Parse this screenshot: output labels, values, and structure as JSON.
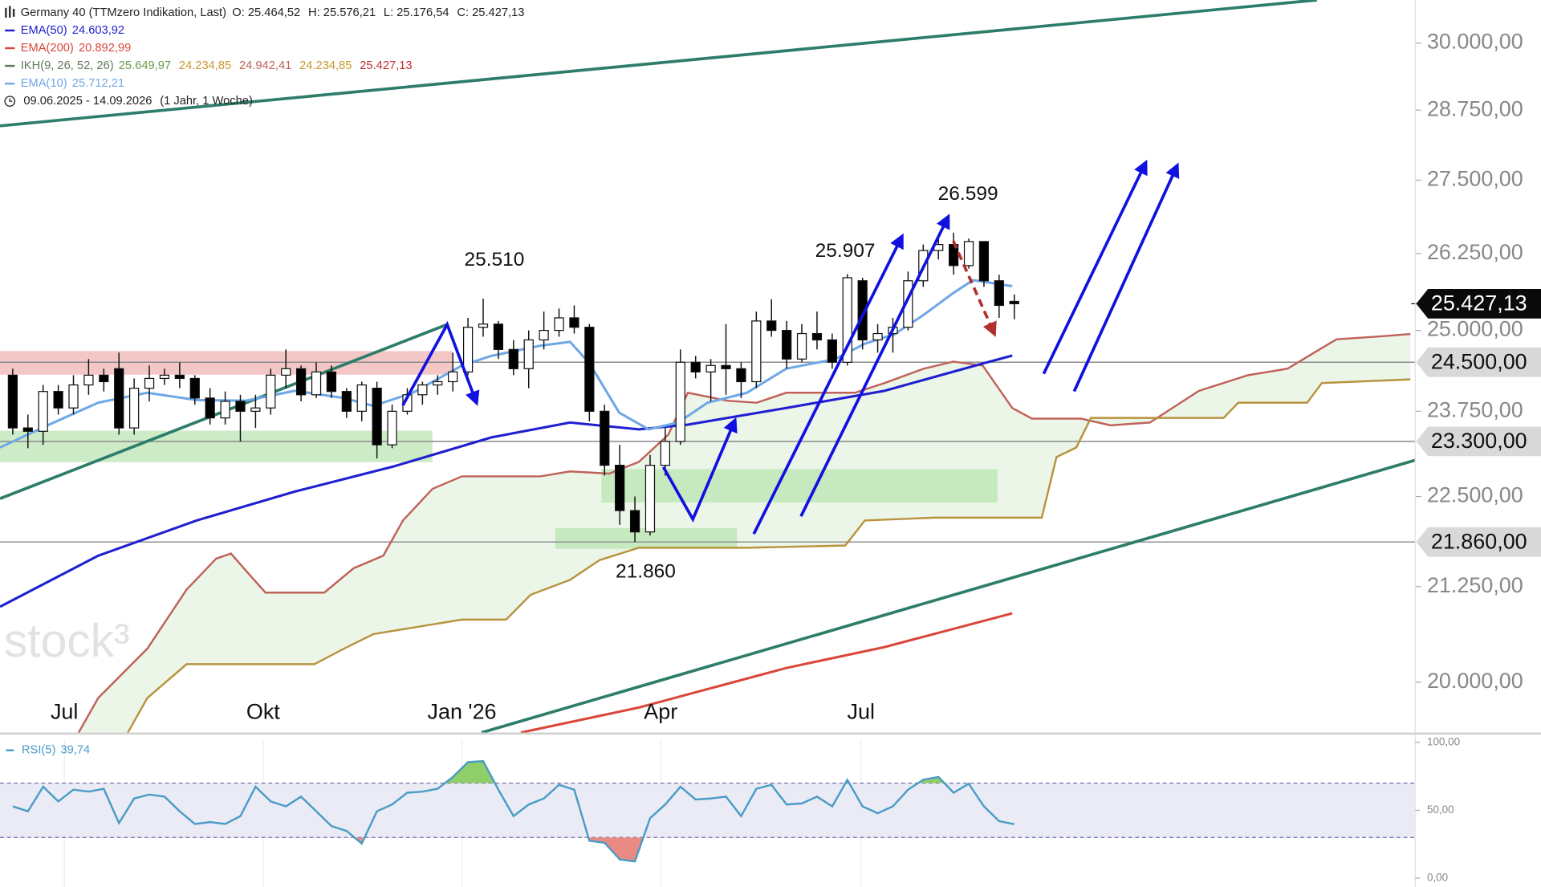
{
  "chart_data": {
    "type": "candlestick",
    "title": "Germany 40 (TTMzero Indikation, Last)",
    "ohlc_header": [
      "O: 25.464,52",
      "H: 25.576,21",
      "L: 25.176,54",
      "C: 25.427,13"
    ],
    "period": "09.06.2025 - 14.09.2026",
    "period_note": "(1 Jahr, 1 Woche)",
    "watermark": "stock³",
    "log_scale": true,
    "xlim": [
      -0.84,
      92.42
    ],
    "xticks": [
      {
        "value": 3.4,
        "label": "Jul"
      },
      {
        "value": 16.5,
        "label": "Okt"
      },
      {
        "value": 29.6,
        "label": "Jan '26"
      },
      {
        "value": 42.7,
        "label": "Apr"
      },
      {
        "value": 55.9,
        "label": "Jul"
      }
    ],
    "ylim": [
      19370,
      30830
    ],
    "yticks": [
      {
        "value": 30000,
        "label": "30.000,00"
      },
      {
        "value": 28750,
        "label": "28.750,00"
      },
      {
        "value": 27500,
        "label": "27.500,00"
      },
      {
        "value": 26250,
        "label": "26.250,00"
      },
      {
        "value": 25000,
        "label": "25.000,00"
      },
      {
        "value": 23750,
        "label": "23.750,00"
      },
      {
        "value": 22500,
        "label": "22.500,00"
      },
      {
        "value": 21250,
        "label": "21.250,00"
      },
      {
        "value": 20000,
        "label": "20.000,00"
      }
    ],
    "open": [
      24300,
      23500,
      23450,
      24050,
      23800,
      24150,
      24300,
      24400,
      23500,
      24100,
      24250,
      24300,
      24250,
      23950,
      23650,
      23900,
      23750,
      23800,
      24300,
      24400,
      24000,
      24350,
      24050,
      23750,
      24100,
      23250,
      23750,
      24000,
      24150,
      24200,
      24350,
      25050,
      25100,
      24700,
      24400,
      24850,
      25000,
      25200,
      25050,
      23750,
      22950,
      22300,
      22000,
      22950,
      23300,
      24500,
      24350,
      24450,
      24400,
      24200,
      25150,
      25000,
      24550,
      24950,
      24850,
      24500,
      25800,
      24850,
      24950,
      25050,
      25800,
      26300,
      26400,
      26050,
      26450,
      25800,
      25464.52
    ],
    "high": [
      24400,
      23700,
      24150,
      24150,
      24300,
      24550,
      24400,
      24650,
      24250,
      24450,
      24400,
      24500,
      24300,
      24100,
      24050,
      24000,
      24000,
      24400,
      24700,
      24450,
      24500,
      24450,
      24100,
      24200,
      24200,
      23850,
      24100,
      24200,
      24300,
      24650,
      25200,
      25510,
      25150,
      24850,
      25000,
      25300,
      25350,
      25400,
      25100,
      23850,
      23250,
      22500,
      23100,
      23500,
      24700,
      24600,
      24550,
      25100,
      24500,
      25300,
      25500,
      25150,
      25100,
      25300,
      24950,
      25907,
      25850,
      25100,
      25200,
      25950,
      26400,
      26500,
      26599,
      26500,
      26450,
      25900,
      25576.21
    ],
    "low": [
      23400,
      23200,
      23250,
      23700,
      23700,
      24000,
      24050,
      23400,
      23400,
      23900,
      24150,
      24100,
      23850,
      23550,
      23550,
      23300,
      23500,
      23700,
      24100,
      23900,
      23950,
      23950,
      23650,
      23600,
      23050,
      23200,
      23700,
      23850,
      24000,
      24050,
      24300,
      24900,
      24550,
      24300,
      24100,
      24700,
      24900,
      24950,
      23600,
      22800,
      22100,
      21860,
      21950,
      22800,
      23250,
      24250,
      23900,
      24000,
      23950,
      24100,
      24900,
      24400,
      24500,
      24700,
      24400,
      24450,
      24700,
      24650,
      24650,
      25000,
      25700,
      26150,
      25900,
      26000,
      25700,
      25200,
      25176.54
    ],
    "close": [
      23500,
      23450,
      24050,
      23800,
      24150,
      24300,
      24200,
      23500,
      24100,
      24250,
      24300,
      24250,
      23950,
      23650,
      23900,
      23750,
      23800,
      24300,
      24400,
      24000,
      24350,
      24050,
      23750,
      24150,
      23250,
      23750,
      24000,
      24150,
      24200,
      24350,
      25050,
      25100,
      24700,
      24400,
      24850,
      25000,
      25200,
      25050,
      23750,
      22950,
      22300,
      22000,
      22950,
      23300,
      24500,
      24350,
      24450,
      24400,
      24200,
      25150,
      25000,
      24550,
      24950,
      24850,
      24500,
      25850,
      24850,
      24950,
      25050,
      25800,
      26300,
      26400,
      26050,
      26450,
      25800,
      25400,
      25427.13
    ],
    "overlays": [
      {
        "name": "EMA(50)",
        "label_value": "24.603,92",
        "color": "#1f1fd0",
        "x": [
          -0.84,
          5.63,
          12.11,
          18.59,
          25.06,
          31.54,
          36.72,
          41.26,
          44.49,
          50.97,
          57.45,
          63.92,
          65.87
        ],
        "values": [
          20980,
          21670,
          22160,
          22570,
          22930,
          23360,
          23580,
          23480,
          23550,
          23800,
          24060,
          24480,
          24603.92
        ]
      },
      {
        "name": "EMA(200)",
        "label_value": "20.892,99",
        "color": "#d9473a",
        "x": [
          33.48,
          41.26,
          50.97,
          57.45,
          65.87
        ],
        "values": [
          19370,
          19680,
          20180,
          20450,
          20892.99
        ]
      },
      {
        "name": "EMA(10)",
        "label_value": "25.712,21",
        "color": "#6fa8e6",
        "x": [
          -0.84,
          2.4,
          5.63,
          8.87,
          12.11,
          15.35,
          18.59,
          21.83,
          23.77,
          26.36,
          29.6,
          31.54,
          34.78,
          36.72,
          38.02,
          39.96,
          41.9,
          43.85,
          45.79,
          48.38,
          50.97,
          54.21,
          56.15,
          58.1,
          60.04,
          61.98,
          63.28,
          65.87
        ],
        "values": [
          23210,
          23550,
          23880,
          24030,
          23920,
          23910,
          24060,
          23950,
          23830,
          24030,
          24450,
          24600,
          24760,
          24820,
          24480,
          23730,
          23480,
          23580,
          23880,
          24030,
          24400,
          24550,
          24790,
          24940,
          25250,
          25600,
          25810,
          25712.21
        ]
      }
    ],
    "ichimoku": {
      "name": "IKH(9, 26, 52, 26)",
      "value_labels": [
        "25.649,97",
        "24.234,85",
        "24.942,41",
        "24.234,85",
        "25.427,13"
      ],
      "span_a": {
        "color": "#c0625a",
        "x": [
          4.34,
          5.63,
          8.87,
          11.46,
          13.41,
          14.38,
          15.35,
          16.65,
          20.53,
          22.47,
          24.42,
          25.71,
          27.66,
          29.6,
          34.78,
          36.72,
          39.31,
          41.26,
          43.2,
          44.49,
          47.09,
          49.03,
          50.97,
          55.5,
          57.45,
          60.04,
          61.98,
          63.92,
          65.87,
          67.16,
          70.4,
          72.34,
          74.94,
          78.17,
          81.41,
          84.0,
          87.24,
          89.83,
          92.1
        ],
        "values": [
          19370,
          19800,
          20430,
          21210,
          21630,
          21700,
          21470,
          21170,
          21170,
          21500,
          21670,
          22160,
          22610,
          22790,
          22790,
          22860,
          22830,
          23000,
          23400,
          24030,
          23910,
          23880,
          24030,
          24030,
          24180,
          24400,
          24510,
          24450,
          23800,
          23640,
          23640,
          23540,
          23580,
          24060,
          24300,
          24400,
          24860,
          24900,
          24942.41
        ]
      },
      "span_b": {
        "color": "#b8933e",
        "x": [
          7.58,
          8.87,
          11.46,
          19.88,
          21.83,
          23.77,
          29.6,
          32.51,
          34.13,
          36.72,
          38.67,
          41.26,
          48.38,
          54.86,
          56.15,
          60.69,
          67.81,
          68.78,
          70.08,
          71.05,
          79.79,
          80.76,
          85.3,
          86.27,
          92.1
        ],
        "values": [
          19370,
          19800,
          20230,
          20230,
          20430,
          20620,
          20810,
          20810,
          21140,
          21340,
          21610,
          21780,
          21780,
          21810,
          22160,
          22200,
          22200,
          23070,
          23210,
          23650,
          23650,
          23880,
          23880,
          24180,
          24234.85
        ]
      },
      "cloud_color": "#dff0d8"
    },
    "levels": [
      {
        "value": 24500,
        "label": "24.500,00"
      },
      {
        "value": 23300,
        "label": "23.300,00"
      },
      {
        "value": 21860,
        "label": "21.860,00"
      }
    ],
    "last_price": {
      "value": 25427.13,
      "label": "25.427,13"
    },
    "annotations": [
      "25.510",
      "25.907",
      "26.599",
      "21.860"
    ],
    "rsi": {
      "name": "RSI(5)",
      "value_label": "39,74",
      "color": "#4a9cc6",
      "ylim": [
        0,
        100
      ],
      "yticks": [
        {
          "value": 0,
          "label": "0,00"
        },
        {
          "value": 50,
          "label": "50,00"
        },
        {
          "value": 100,
          "label": "100,00"
        }
      ],
      "levels": [
        30,
        70
      ],
      "values": [
        52.9,
        49.3,
        67.4,
        56.5,
        65.2,
        63.8,
        65.9,
        40.6,
        58.7,
        61.6,
        60.1,
        49.3,
        39.9,
        41.3,
        39.9,
        45.7,
        67.4,
        56.5,
        52.9,
        60.1,
        49.3,
        38.4,
        34.8,
        25.4,
        49.3,
        54.3,
        63.0,
        63.8,
        65.9,
        74.6,
        85.5,
        86.2,
        65.2,
        45.7,
        54.3,
        58.7,
        68.8,
        65.2,
        27.5,
        26.1,
        13.8,
        12.3,
        44.2,
        54.3,
        67.4,
        58.0,
        58.7,
        60.1,
        45.7,
        65.9,
        68.8,
        54.3,
        55.1,
        60.1,
        52.9,
        72.5,
        52.9,
        47.8,
        52.9,
        65.2,
        72.5,
        74.6,
        63.0,
        69.6,
        52.9,
        42.0,
        39.74
      ]
    }
  }
}
